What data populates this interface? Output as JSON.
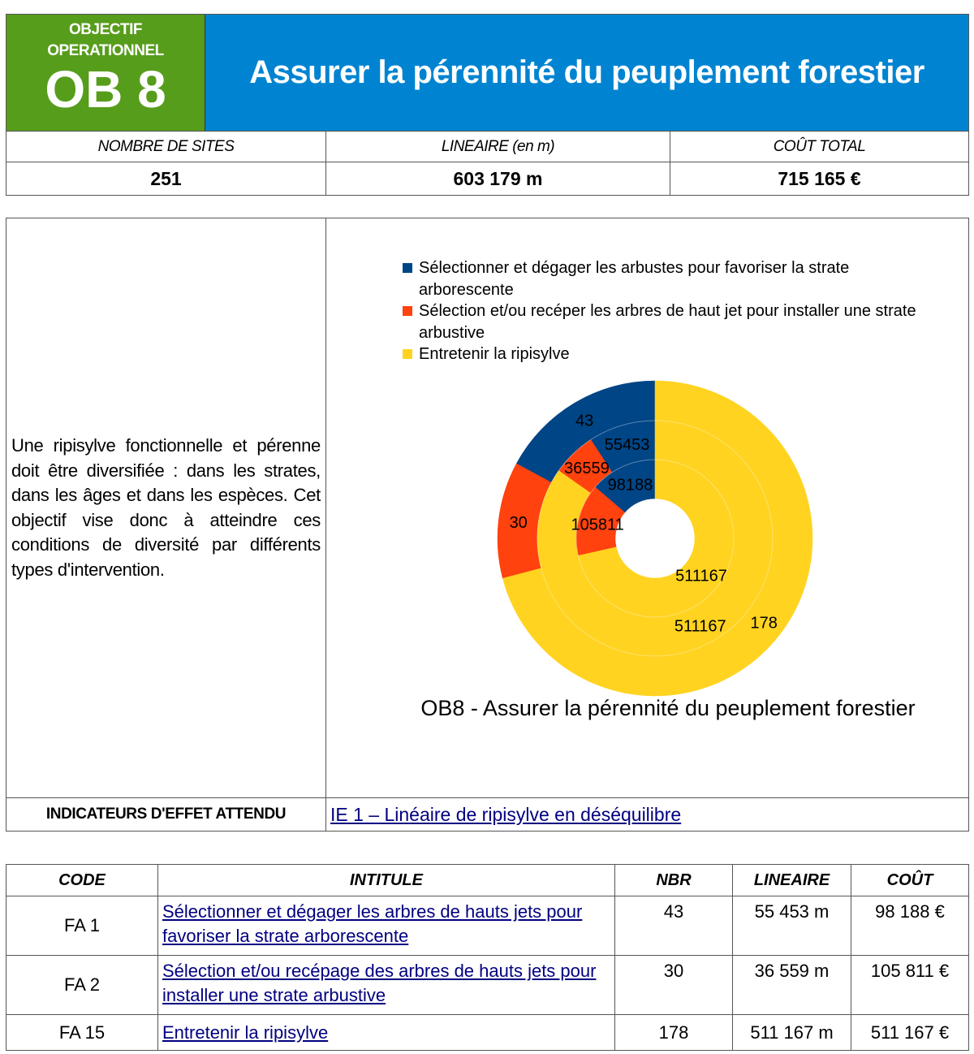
{
  "header": {
    "objective_label": "OBJECTIF OPERATIONNEL",
    "code": "OB 8",
    "title": "Assurer la pérennité du peuplement forestier",
    "green": "#579d1c",
    "blue": "#0084d1"
  },
  "summary": {
    "labels": [
      "NOMBRE DE SITES",
      "LINEAIRE (en m)",
      "COÛT TOTAL"
    ],
    "values": [
      "251",
      "603 179 m",
      "715 165 €"
    ]
  },
  "description": "Une ripisylve fonctionnelle et pérenne doit être diversifiée : dans les strates, dans les âges et dans les espèces. Cet objectif vise donc à atteindre ces conditions de diversité par différents types d'intervention.",
  "indicators": {
    "label": "INDICATEURS D'EFFET ATTENDU",
    "link": "IE 1 – Linéaire de ripisylve en déséquilibre"
  },
  "chart_data": {
    "type": "donut",
    "title": "OB8 - Assurer la pérennité du peuplement forestier",
    "legend_placement": "top",
    "categories": [
      "Sélectionner et dégager les arbustes pour favoriser la strate arborescente",
      "Sélection et/ou recéper les arbres de haut jet pour installer une strate arbustive",
      "Entretenir la ripisylve"
    ],
    "colors": [
      "#004586",
      "#ff420e",
      "#ffd320"
    ],
    "rings": [
      {
        "values": [
          43,
          30,
          178
        ]
      },
      {
        "values": [
          55453,
          36559,
          511167
        ]
      },
      {
        "values": [
          98188,
          105811,
          511167
        ]
      }
    ]
  },
  "table": {
    "headers": [
      "CODE",
      "INTITULE",
      "NBR",
      "LINEAIRE",
      "COÛT"
    ],
    "rows": [
      {
        "code": "FA 1",
        "title": "Sélectionner et dégager les arbres de hauts jets pour favoriser la strate arborescente",
        "nbr": "43",
        "lin": "55 453 m",
        "cost": "98 188 €"
      },
      {
        "code": "FA 2",
        "title": "Sélection et/ou recépage des arbres de hauts jets pour installer une strate arbustive",
        "nbr": "30",
        "lin": "36 559 m",
        "cost": "105 811 €"
      },
      {
        "code": "FA 15",
        "title": "Entretenir la ripisylve",
        "nbr": "178",
        "lin": "511 167 m",
        "cost": "511 167 €"
      }
    ]
  }
}
